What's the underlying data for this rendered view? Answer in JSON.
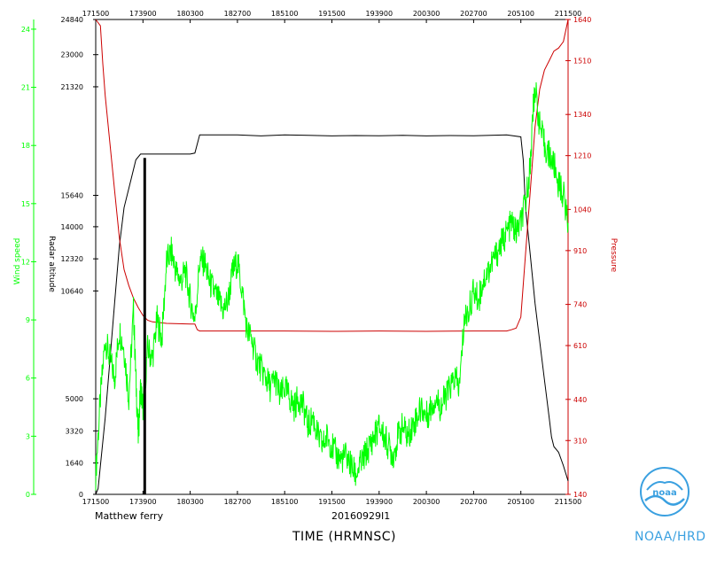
{
  "footer": {
    "storm_label": "Matthew ferry",
    "flight_id": "20160929I1",
    "time_title": "TIME (HRMNSC)",
    "noaa_label": "NOAA/HRD"
  },
  "logo": {
    "text": "noaa",
    "icon": "noaa-logo-icon"
  },
  "colors": {
    "radar": "#000000",
    "wind": "#00ff00",
    "pressure": "#cc0000",
    "frame": "#000000",
    "logo": "#3aa0e0"
  },
  "chart_data": {
    "type": "line",
    "x_ticks": [
      "171500",
      "173900",
      "180300",
      "182700",
      "185100",
      "191500",
      "193900",
      "200300",
      "202700",
      "205100",
      "211500"
    ],
    "left_outer_axis": {
      "label": "Wind speed",
      "ticks": [
        "0",
        "3",
        "6",
        "9",
        "12",
        "15",
        "18",
        "21",
        "24"
      ],
      "range": [
        0,
        24.5
      ]
    },
    "left_inner_axis": {
      "label": "Radar altitude",
      "ticks": [
        "0",
        "1640",
        "3320",
        "5000",
        "10640",
        "12320",
        "14000",
        "15640",
        "21320",
        "23000",
        "24840"
      ],
      "range": [
        0,
        24840
      ]
    },
    "right_axis": {
      "label": "Pressure",
      "ticks": [
        "140",
        "310",
        "440",
        "610",
        "740",
        "910",
        "1040",
        "1210",
        "1340",
        "1510",
        "1640"
      ],
      "range": [
        140,
        1640
      ]
    },
    "series": [
      {
        "axis": "left_inner",
        "values": [
          [
            0.0,
            0
          ],
          [
            0.005,
            300
          ],
          [
            0.01,
            1500
          ],
          [
            0.02,
            4000
          ],
          [
            0.03,
            7000
          ],
          [
            0.04,
            10000
          ],
          [
            0.05,
            13000
          ],
          [
            0.06,
            15000
          ],
          [
            0.075,
            16500
          ],
          [
            0.085,
            17500
          ],
          [
            0.095,
            17800
          ],
          [
            0.12,
            17800
          ],
          [
            0.15,
            17800
          ],
          [
            0.2,
            17800
          ],
          [
            0.21,
            17850
          ],
          [
            0.22,
            18800
          ],
          [
            0.25,
            18800
          ],
          [
            0.3,
            18800
          ],
          [
            0.35,
            18750
          ],
          [
            0.4,
            18800
          ],
          [
            0.45,
            18780
          ],
          [
            0.5,
            18750
          ],
          [
            0.55,
            18770
          ],
          [
            0.6,
            18760
          ],
          [
            0.65,
            18780
          ],
          [
            0.7,
            18750
          ],
          [
            0.75,
            18770
          ],
          [
            0.8,
            18760
          ],
          [
            0.87,
            18800
          ],
          [
            0.9,
            18700
          ],
          [
            0.905,
            17500
          ],
          [
            0.91,
            15000
          ],
          [
            0.92,
            12500
          ],
          [
            0.93,
            10000
          ],
          [
            0.94,
            8000
          ],
          [
            0.95,
            6000
          ],
          [
            0.96,
            4000
          ],
          [
            0.965,
            3000
          ],
          [
            0.97,
            2500
          ],
          [
            0.98,
            2200
          ],
          [
            0.99,
            1500
          ],
          [
            1.0,
            700
          ]
        ]
      },
      {
        "axis": "right",
        "values": [
          [
            0.0,
            1640
          ],
          [
            0.01,
            1620
          ],
          [
            0.015,
            1500
          ],
          [
            0.02,
            1400
          ],
          [
            0.03,
            1250
          ],
          [
            0.04,
            1100
          ],
          [
            0.05,
            950
          ],
          [
            0.06,
            850
          ],
          [
            0.07,
            800
          ],
          [
            0.08,
            760
          ],
          [
            0.09,
            730
          ],
          [
            0.1,
            705
          ],
          [
            0.11,
            690
          ],
          [
            0.12,
            685
          ],
          [
            0.15,
            680
          ],
          [
            0.2,
            678
          ],
          [
            0.21,
            678
          ],
          [
            0.215,
            660
          ],
          [
            0.22,
            656
          ],
          [
            0.3,
            656
          ],
          [
            0.4,
            656
          ],
          [
            0.5,
            655
          ],
          [
            0.6,
            656
          ],
          [
            0.7,
            655
          ],
          [
            0.8,
            656
          ],
          [
            0.87,
            656
          ],
          [
            0.88,
            660
          ],
          [
            0.89,
            665
          ],
          [
            0.9,
            700
          ],
          [
            0.91,
            900
          ],
          [
            0.92,
            1100
          ],
          [
            0.93,
            1300
          ],
          [
            0.94,
            1420
          ],
          [
            0.95,
            1480
          ],
          [
            0.96,
            1510
          ],
          [
            0.97,
            1540
          ],
          [
            0.98,
            1550
          ],
          [
            0.99,
            1570
          ],
          [
            1.0,
            1640
          ]
        ]
      },
      {
        "axis": "left_outer",
        "values": [
          [
            0.0,
            1.0
          ],
          [
            0.01,
            5.0
          ],
          [
            0.02,
            8.0
          ],
          [
            0.03,
            7.0
          ],
          [
            0.04,
            6.0
          ],
          [
            0.05,
            8.5
          ],
          [
            0.06,
            7.5
          ],
          [
            0.07,
            5.0
          ],
          [
            0.08,
            9.5
          ],
          [
            0.085,
            6.0
          ],
          [
            0.09,
            3.0
          ],
          [
            0.095,
            5.5
          ],
          [
            0.1,
            4.5
          ],
          [
            0.11,
            7.5
          ],
          [
            0.12,
            7.0
          ],
          [
            0.13,
            9.0
          ],
          [
            0.14,
            8.0
          ],
          [
            0.15,
            12.0
          ],
          [
            0.16,
            12.5
          ],
          [
            0.17,
            11.5
          ],
          [
            0.18,
            11.0
          ],
          [
            0.19,
            11.5
          ],
          [
            0.2,
            10.0
          ],
          [
            0.21,
            9.0
          ],
          [
            0.22,
            12.0
          ],
          [
            0.23,
            12.0
          ],
          [
            0.24,
            11.0
          ],
          [
            0.25,
            10.5
          ],
          [
            0.26,
            10.0
          ],
          [
            0.27,
            9.5
          ],
          [
            0.28,
            10.0
          ],
          [
            0.29,
            11.5
          ],
          [
            0.3,
            12.0
          ],
          [
            0.31,
            10.5
          ],
          [
            0.32,
            8.5
          ],
          [
            0.33,
            8.0
          ],
          [
            0.34,
            7.0
          ],
          [
            0.35,
            6.5
          ],
          [
            0.36,
            6.0
          ],
          [
            0.37,
            5.5
          ],
          [
            0.38,
            6.0
          ],
          [
            0.39,
            5.0
          ],
          [
            0.4,
            5.5
          ],
          [
            0.41,
            5.0
          ],
          [
            0.42,
            4.5
          ],
          [
            0.43,
            5.0
          ],
          [
            0.44,
            4.5
          ],
          [
            0.45,
            3.5
          ],
          [
            0.46,
            4.0
          ],
          [
            0.47,
            3.0
          ],
          [
            0.48,
            2.5
          ],
          [
            0.49,
            3.0
          ],
          [
            0.5,
            2.5
          ],
          [
            0.51,
            2.0
          ],
          [
            0.52,
            1.8
          ],
          [
            0.53,
            2.0
          ],
          [
            0.54,
            1.5
          ],
          [
            0.55,
            1.0
          ],
          [
            0.56,
            1.5
          ],
          [
            0.57,
            2.0
          ],
          [
            0.58,
            2.5
          ],
          [
            0.59,
            3.0
          ],
          [
            0.6,
            3.5
          ],
          [
            0.61,
            3.0
          ],
          [
            0.62,
            2.5
          ],
          [
            0.63,
            2.0
          ],
          [
            0.64,
            3.0
          ],
          [
            0.65,
            3.5
          ],
          [
            0.66,
            3.0
          ],
          [
            0.67,
            3.5
          ],
          [
            0.68,
            4.0
          ],
          [
            0.69,
            4.5
          ],
          [
            0.7,
            4.0
          ],
          [
            0.71,
            4.5
          ],
          [
            0.72,
            5.0
          ],
          [
            0.73,
            4.5
          ],
          [
            0.74,
            5.0
          ],
          [
            0.75,
            5.5
          ],
          [
            0.76,
            6.0
          ],
          [
            0.77,
            5.5
          ],
          [
            0.78,
            9.0
          ],
          [
            0.79,
            9.5
          ],
          [
            0.8,
            10.5
          ],
          [
            0.81,
            10.0
          ],
          [
            0.82,
            11.0
          ],
          [
            0.83,
            11.5
          ],
          [
            0.84,
            12.0
          ],
          [
            0.85,
            12.5
          ],
          [
            0.86,
            13.0
          ],
          [
            0.87,
            13.5
          ],
          [
            0.88,
            14.0
          ],
          [
            0.89,
            13.5
          ],
          [
            0.9,
            14.0
          ],
          [
            0.91,
            15.0
          ],
          [
            0.92,
            17.0
          ],
          [
            0.925,
            19.5
          ],
          [
            0.93,
            21.0
          ],
          [
            0.94,
            19.0
          ],
          [
            0.95,
            18.0
          ],
          [
            0.96,
            17.5
          ],
          [
            0.97,
            17.0
          ],
          [
            0.98,
            16.0
          ],
          [
            0.99,
            15.5
          ],
          [
            1.0,
            14.0
          ]
        ]
      }
    ]
  }
}
